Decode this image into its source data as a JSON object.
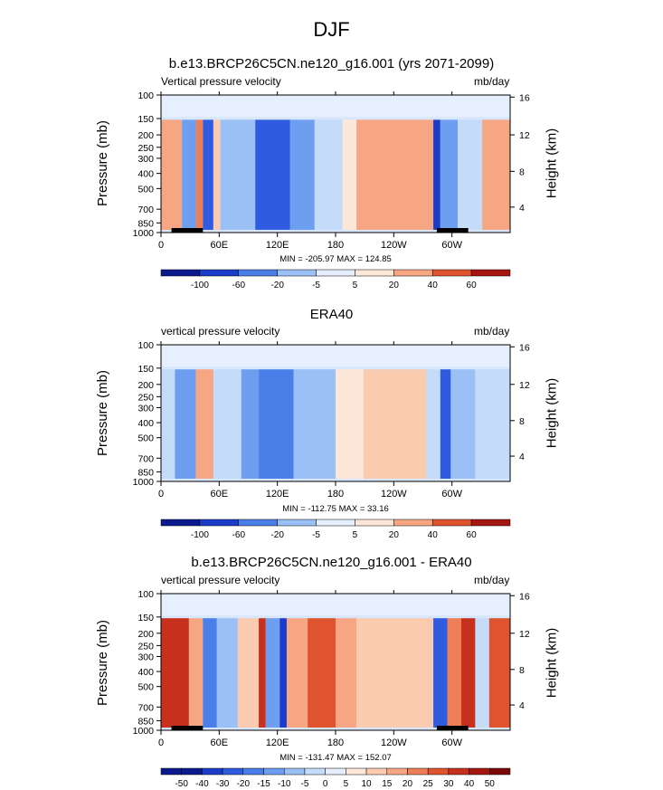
{
  "title": "DJF",
  "panel_subtitle_left": "Vertical pressure velocity",
  "units": "mb/day",
  "y_axis_label": "Pressure (mb)",
  "y2_axis_label": "Height (km)",
  "colors": {
    "neg": [
      "#0a1a8c",
      "#1a3cc8",
      "#2e5be0",
      "#4a7ee8",
      "#6e9ef0",
      "#9ac0f6",
      "#c4dcfa",
      "#e4eefc"
    ],
    "pos": [
      "#fde7d8",
      "#fbcbb0",
      "#f6a682",
      "#ee7e55",
      "#e0532f",
      "#c7301c",
      "#a61610",
      "#7a0808"
    ]
  },
  "chart_data": [
    {
      "type": "heatmap",
      "title": "b.e13.BRCP26C5CN.ne120_g16.001 (yrs 2071-2099)",
      "subtitle_left": "Vertical pressure velocity",
      "units": "mb/day",
      "x_ticks": [
        "0",
        "60E",
        "120E",
        "180",
        "120W",
        "60W"
      ],
      "y_ticks": [
        "100",
        "150",
        "200",
        "250",
        "300",
        "400",
        "500",
        "700",
        "850",
        "1000"
      ],
      "y2_ticks": [
        "16",
        "12",
        "8",
        "4"
      ],
      "min": -205.97,
      "max": 124.85,
      "minmax_label": "MIN = -205.97  MAX = 124.85",
      "colorbar_labels": [
        "-100",
        "-60",
        "-20",
        "-5",
        "5",
        "20",
        "40",
        "60"
      ]
    },
    {
      "type": "heatmap",
      "title": "ERA40",
      "subtitle_left": "vertical pressure velocity",
      "units": "mb/day",
      "x_ticks": [
        "0",
        "60E",
        "120E",
        "180",
        "120W",
        "60W"
      ],
      "y_ticks": [
        "100",
        "150",
        "200",
        "250",
        "300",
        "400",
        "500",
        "700",
        "850",
        "1000"
      ],
      "y2_ticks": [
        "16",
        "12",
        "8",
        "4"
      ],
      "min": -112.75,
      "max": 33.16,
      "minmax_label": "MIN = -112.75  MAX =  33.16",
      "colorbar_labels": [
        "-100",
        "-60",
        "-20",
        "-5",
        "5",
        "20",
        "40",
        "60"
      ]
    },
    {
      "type": "heatmap",
      "title": "b.e13.BRCP26C5CN.ne120_g16.001 - ERA40",
      "subtitle_left": "vertical pressure velocity",
      "units": "mb/day",
      "x_ticks": [
        "0",
        "60E",
        "120E",
        "180",
        "120W",
        "60W"
      ],
      "y_ticks": [
        "100",
        "150",
        "200",
        "250",
        "300",
        "400",
        "500",
        "700",
        "850",
        "1000"
      ],
      "y2_ticks": [
        "16",
        "12",
        "8",
        "4"
      ],
      "min": -131.47,
      "max": 152.07,
      "minmax_label": "MIN = -131.47  MAX = 152.07",
      "colorbar_labels": [
        "-50",
        "-40",
        "-30",
        "-20",
        "-15",
        "-10",
        "-5",
        "0",
        "5",
        "10",
        "15",
        "20",
        "25",
        "30",
        "40",
        "50"
      ]
    }
  ]
}
